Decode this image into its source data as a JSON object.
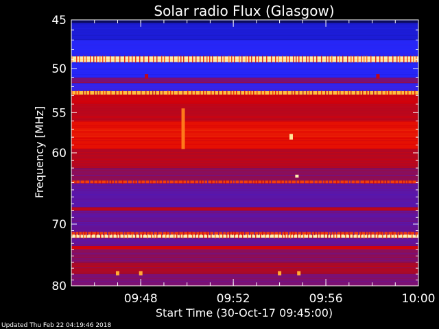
{
  "chart_data": {
    "type": "heatmap",
    "title": "Solar radio Flux (Glasgow)",
    "xlabel": "Start Time (30-Oct-17 09:45:00)",
    "ylabel": "Frequency [MHz]",
    "x_range": [
      "09:45",
      "10:00"
    ],
    "y_range": [
      45,
      80
    ],
    "y_scale": "log",
    "x_ticks": [
      "09:48",
      "09:52",
      "09:56",
      "10:00"
    ],
    "y_ticks": [
      45,
      50,
      55,
      60,
      70,
      80
    ],
    "colormap": "blue-purple-red-yellow-white",
    "bands": [
      {
        "f0": 45.0,
        "f1": 45.3,
        "level": 0.05
      },
      {
        "f0": 45.3,
        "f1": 47.0,
        "level": 0.22
      },
      {
        "f0": 47.0,
        "f1": 48.7,
        "level": 0.3
      },
      {
        "f0": 48.7,
        "f1": 49.3,
        "level": 0.98
      },
      {
        "f0": 49.3,
        "f1": 51.0,
        "level": 0.3
      },
      {
        "f0": 51.0,
        "f1": 51.6,
        "level": 0.5
      },
      {
        "f0": 51.6,
        "f1": 52.5,
        "level": 0.36
      },
      {
        "f0": 52.5,
        "f1": 52.9,
        "level": 0.92
      },
      {
        "f0": 52.9,
        "f1": 54.0,
        "level": 0.66
      },
      {
        "f0": 54.0,
        "f1": 56.0,
        "level": 0.62
      },
      {
        "f0": 56.0,
        "f1": 59.5,
        "level": 0.72
      },
      {
        "f0": 59.5,
        "f1": 62.0,
        "level": 0.6
      },
      {
        "f0": 62.0,
        "f1": 63.7,
        "level": 0.52
      },
      {
        "f0": 63.7,
        "f1": 64.1,
        "level": 0.78
      },
      {
        "f0": 64.1,
        "f1": 67.5,
        "level": 0.44
      },
      {
        "f0": 67.5,
        "f1": 68.0,
        "level": 0.62
      },
      {
        "f0": 68.0,
        "f1": 71.2,
        "level": 0.46
      },
      {
        "f0": 71.2,
        "f1": 71.6,
        "level": 0.78
      },
      {
        "f0": 71.6,
        "f1": 72.1,
        "level": 0.98
      },
      {
        "f0": 72.1,
        "f1": 73.4,
        "level": 0.46
      },
      {
        "f0": 73.4,
        "f1": 73.9,
        "level": 0.66
      },
      {
        "f0": 73.9,
        "f1": 76.0,
        "level": 0.52
      },
      {
        "f0": 76.0,
        "f1": 78.0,
        "level": 0.58
      },
      {
        "f0": 78.0,
        "f1": 80.0,
        "level": 0.5
      }
    ],
    "bursts": [
      {
        "time": "09:49:50",
        "f0": 54.5,
        "f1": 59.5,
        "level": 0.85
      },
      {
        "time": "09:54:30",
        "f0": 57.6,
        "f1": 58.3,
        "level": 0.97
      },
      {
        "time": "09:54:45",
        "f0": 62.9,
        "f1": 63.3,
        "level": 0.98
      },
      {
        "time": "09:48:15",
        "f0": 50.6,
        "f1": 51.1,
        "level": 0.62
      },
      {
        "time": "09:58:15",
        "f0": 50.6,
        "f1": 51.1,
        "level": 0.62
      },
      {
        "time": "09:47:00",
        "f0": 77.5,
        "f1": 78.2,
        "level": 0.9
      },
      {
        "time": "09:48:00",
        "f0": 77.5,
        "f1": 78.2,
        "level": 0.9
      },
      {
        "time": "09:54:00",
        "f0": 77.5,
        "f1": 78.2,
        "level": 0.9
      },
      {
        "time": "09:54:50",
        "f0": 77.5,
        "f1": 78.2,
        "level": 0.9
      }
    ]
  },
  "footer": "Updated Thu Feb 22 04:19:46 2018"
}
